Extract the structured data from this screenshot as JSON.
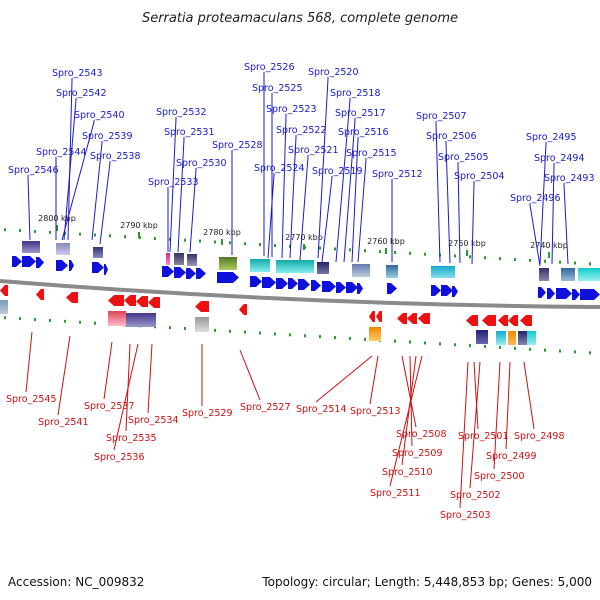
{
  "title": "Serratia proteamaculans 568, complete genome",
  "footer": {
    "accession": "Accession: NC_009832",
    "topology": "Topology: circular; Length: 5,448,853 bp; Genes: 5,000"
  },
  "colors": {
    "plus_strand": "#1010dd",
    "minus_strand": "#ee1111",
    "backbone": "#8a8a8a",
    "tick": "#2a9a2a",
    "label_plus": "#1a1acc",
    "label_minus": "#cc1111"
  },
  "ticks": [
    "2800 kbp",
    "2790 kbp",
    "2780 kbp",
    "2770 kbp",
    "2760 kbp",
    "2750 kbp",
    "2740 kbp"
  ],
  "genes_plus": [
    "Spro_2543",
    "Spro_2542",
    "Spro_2540",
    "Spro_2539",
    "Spro_2538",
    "Spro_2544",
    "Spro_2546",
    "Spro_2532",
    "Spro_2531",
    "Spro_2530",
    "Spro_2533",
    "Spro_2528",
    "Spro_2526",
    "Spro_2525",
    "Spro_2523",
    "Spro_2522",
    "Spro_2521",
    "Spro_2524",
    "Spro_2520",
    "Spro_2518",
    "Spro_2517",
    "Spro_2516",
    "Spro_2515",
    "Spro_2519",
    "Spro_2512",
    "Spro_2507",
    "Spro_2506",
    "Spro_2505",
    "Spro_2504",
    "Spro_2495",
    "Spro_2494",
    "Spro_2493",
    "Spro_2496"
  ],
  "genes_minus": [
    "Spro_2545",
    "Spro_2541",
    "Spro_2537",
    "Spro_2535",
    "Spro_2536",
    "Spro_2534",
    "Spro_2529",
    "Spro_2527",
    "Spro_2514",
    "Spro_2513",
    "Spro_2508",
    "Spro_2509",
    "Spro_2510",
    "Spro_2511",
    "Spro_2501",
    "Spro_2502",
    "Spro_2503",
    "Spro_2500",
    "Spro_2499",
    "Spro_2498"
  ]
}
